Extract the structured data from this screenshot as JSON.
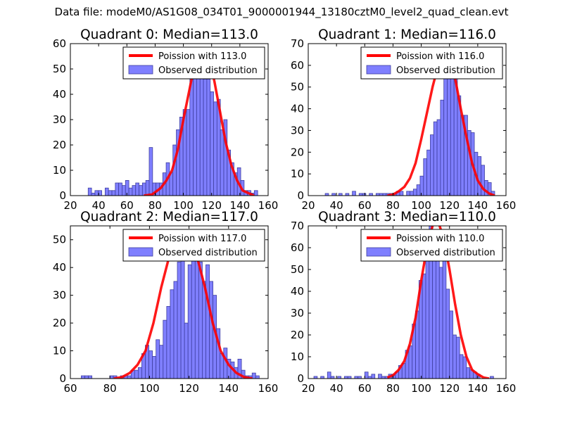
{
  "suptitle": "Data file: modeM0/AS1G08_034T01_9000001944_13180cztM0_level2_quad_clean.evt",
  "colors": {
    "hist_fill": "#7f7fff",
    "hist_edge": "#3f3f9f",
    "poisson": "#ff0000"
  },
  "chart_data": [
    {
      "type": "bar",
      "title": "Quadrant 0: Median=113.0",
      "xlim": [
        20,
        160
      ],
      "ylim": [
        0,
        60
      ],
      "xticks": [
        20,
        40,
        60,
        80,
        100,
        120,
        140,
        160
      ],
      "yticks": [
        0,
        10,
        20,
        30,
        40,
        50,
        60
      ],
      "legend": [
        "Poission with 113.0",
        "Observed distribution"
      ],
      "legend_position": "top-right",
      "bin_width": 2.4,
      "bins_x": [
        32.6,
        35,
        37.4,
        39.8,
        42.2,
        44.6,
        47,
        49.4,
        51.8,
        54.2,
        56.6,
        59,
        61.4,
        63.8,
        66.2,
        68.6,
        71,
        73.4,
        75.8,
        78.2,
        80.6,
        83,
        85.4,
        87.8,
        90.2,
        92.6,
        95,
        97.4,
        99.8,
        102.2,
        104.6,
        107,
        109.4,
        111.8,
        114.2,
        116.6,
        119,
        121.4,
        123.8,
        126.2,
        128.6,
        131,
        133.4,
        135.8,
        138.2,
        140.6,
        143,
        145.4,
        147.8,
        150.2
      ],
      "bins_y": [
        3,
        1,
        2,
        2,
        0,
        3,
        2,
        2,
        5,
        5,
        4,
        6,
        3,
        4,
        5,
        4,
        5,
        6,
        19,
        5,
        5,
        5,
        9,
        13,
        9,
        20,
        26,
        31,
        34,
        34,
        50,
        49,
        52,
        51,
        46,
        46,
        41,
        37,
        38,
        26,
        30,
        18,
        13,
        9,
        11,
        6,
        2,
        2,
        1,
        2
      ],
      "poisson_x": [
        72,
        78,
        84,
        88,
        92,
        96,
        100,
        104,
        108,
        112,
        113,
        114,
        118,
        122,
        126,
        130,
        134,
        138,
        142,
        146,
        150
      ],
      "poisson_y": [
        0,
        0.5,
        3,
        6,
        10,
        18,
        30,
        41,
        52,
        57,
        58,
        57,
        55,
        45,
        33,
        21,
        12,
        6,
        2,
        1,
        0
      ]
    },
    {
      "type": "bar",
      "title": "Quadrant 1: Median=116.0",
      "xlim": [
        20,
        160
      ],
      "ylim": [
        0,
        70
      ],
      "xticks": [
        20,
        40,
        60,
        80,
        100,
        120,
        140,
        160
      ],
      "yticks": [
        0,
        10,
        20,
        30,
        40,
        50,
        60,
        70
      ],
      "legend": [
        "Poission with 116.0",
        "Observed distribution"
      ],
      "legend_position": "top-right",
      "bin_width": 2.4,
      "bins_x": [
        32,
        34.4,
        36.8,
        39.2,
        41.6,
        44,
        46.4,
        48.8,
        51.2,
        53.6,
        56,
        58.4,
        60.8,
        63.2,
        65.6,
        68,
        70.4,
        72.8,
        75.2,
        77.6,
        80,
        82.4,
        84.8,
        87.2,
        89.6,
        92,
        94.4,
        96.8,
        99.2,
        101.6,
        104,
        106.4,
        108.8,
        111.2,
        113.6,
        116,
        118.4,
        120.8,
        123.2,
        125.6,
        128,
        130.4,
        132.8,
        135.2,
        137.6,
        140,
        142.4,
        144.8,
        147.2,
        149.6
      ],
      "bins_y": [
        1,
        0,
        1,
        0,
        1,
        0,
        1,
        0,
        2,
        0,
        1,
        1,
        0,
        1,
        0,
        1,
        1,
        1,
        1,
        1,
        1,
        2,
        2,
        0,
        2,
        2,
        3,
        5,
        9,
        17,
        21,
        28,
        34,
        35,
        44,
        55,
        57,
        64,
        58,
        46,
        37,
        37,
        30,
        29,
        20,
        18,
        14,
        7,
        6,
        2
      ],
      "poisson_x": [
        76,
        80,
        84,
        88,
        92,
        96,
        100,
        104,
        108,
        112,
        116,
        120,
        124,
        128,
        132,
        136,
        140,
        144,
        148,
        152
      ],
      "poisson_y": [
        0,
        0.5,
        2,
        4,
        8,
        15,
        26,
        38,
        50,
        60,
        68,
        64,
        54,
        40,
        27,
        15,
        7,
        3,
        1,
        0
      ]
    },
    {
      "type": "bar",
      "title": "Quadrant 2: Median=117.0",
      "xlim": [
        60,
        160
      ],
      "ylim": [
        0,
        55
      ],
      "xticks": [
        60,
        80,
        100,
        120,
        140,
        160
      ],
      "yticks": [
        0,
        10,
        20,
        30,
        40,
        50
      ],
      "legend": [
        "Poission with 117.0",
        "Observed distribution"
      ],
      "legend_position": "top-right",
      "bin_width": 1.8,
      "bins_x": [
        65.5,
        67.3,
        69.1,
        70.9,
        72.7,
        74.5,
        76.3,
        78.1,
        79.9,
        81.7,
        83.5,
        85.3,
        87.1,
        88.9,
        90.7,
        92.5,
        94.3,
        96.1,
        97.9,
        99.7,
        101.5,
        103.3,
        105.1,
        106.9,
        108.7,
        110.5,
        112.3,
        114.1,
        115.9,
        117.7,
        119.5,
        121.3,
        123.1,
        124.9,
        126.7,
        128.5,
        130.3,
        132.1,
        133.9,
        135.7,
        137.5,
        139.3,
        141.1,
        142.9,
        144.7,
        146.5,
        148.3,
        150.1,
        151.9,
        153.7
      ],
      "bins_y": [
        1,
        1,
        1,
        0,
        0,
        0,
        0,
        0,
        1,
        1,
        0,
        1,
        1,
        1,
        3,
        3,
        4,
        9,
        12,
        10,
        8,
        14,
        12,
        21,
        26,
        32,
        35,
        42,
        46,
        20,
        41,
        53,
        50,
        42,
        35,
        41,
        35,
        30,
        18,
        9,
        11,
        7,
        6,
        4,
        7,
        3,
        1,
        1,
        2,
        1
      ],
      "poisson_x": [
        82,
        86,
        90,
        94,
        98,
        102,
        106,
        110,
        114,
        117,
        120,
        124,
        128,
        132,
        136,
        140,
        144,
        148,
        152
      ],
      "poisson_y": [
        0,
        0.5,
        2,
        5,
        10,
        20,
        33,
        44,
        51,
        53,
        51,
        44,
        33,
        20,
        10,
        5,
        2,
        0.5,
        0
      ],
      "xlabel": "",
      "ylabel": ""
    },
    {
      "type": "bar",
      "title": "Quadrant 3: Median=110.0",
      "xlim": [
        20,
        160
      ],
      "ylim": [
        0,
        70
      ],
      "xticks": [
        20,
        40,
        60,
        80,
        100,
        120,
        140,
        160
      ],
      "yticks": [
        0,
        10,
        20,
        30,
        40,
        50,
        60,
        70
      ],
      "legend": [
        "Poission with 110.0",
        "Observed distribution"
      ],
      "legend_position": "top-right",
      "bin_width": 2.4,
      "bins_x": [
        24,
        26.4,
        28.8,
        31.2,
        33.6,
        36,
        38.4,
        40.8,
        43.2,
        45.6,
        48,
        50.4,
        52.8,
        55.2,
        57.6,
        60,
        62.4,
        64.8,
        67.2,
        69.6,
        72,
        74.4,
        76.8,
        79.2,
        81.6,
        84,
        86.4,
        88.8,
        91.2,
        93.6,
        96,
        98.4,
        100.8,
        103.2,
        105.6,
        108,
        110.4,
        112.8,
        115.2,
        117.6,
        120,
        122.4,
        124.8,
        127.2,
        129.6,
        132,
        134.4,
        136.8,
        139.2,
        148.8
      ],
      "bins_y": [
        1,
        0,
        1,
        0,
        3,
        1,
        0,
        1,
        0,
        1,
        1,
        0,
        1,
        1,
        0,
        3,
        1,
        2,
        0,
        2,
        1,
        1,
        2,
        2,
        3,
        6,
        7,
        13,
        15,
        25,
        31,
        45,
        48,
        63,
        72,
        64,
        68,
        51,
        55,
        41,
        31,
        20,
        19,
        11,
        10,
        5,
        4,
        3,
        2,
        1
      ],
      "poisson_x": [
        76,
        80,
        84,
        88,
        92,
        96,
        100,
        104,
        108,
        110,
        112,
        116,
        120,
        124,
        128,
        132,
        136,
        140,
        144,
        148
      ],
      "poisson_y": [
        0.5,
        1.5,
        4,
        8,
        16,
        28,
        45,
        60,
        70,
        73,
        72,
        64,
        50,
        34,
        20,
        10,
        4,
        2,
        0.5,
        0
      ]
    }
  ]
}
